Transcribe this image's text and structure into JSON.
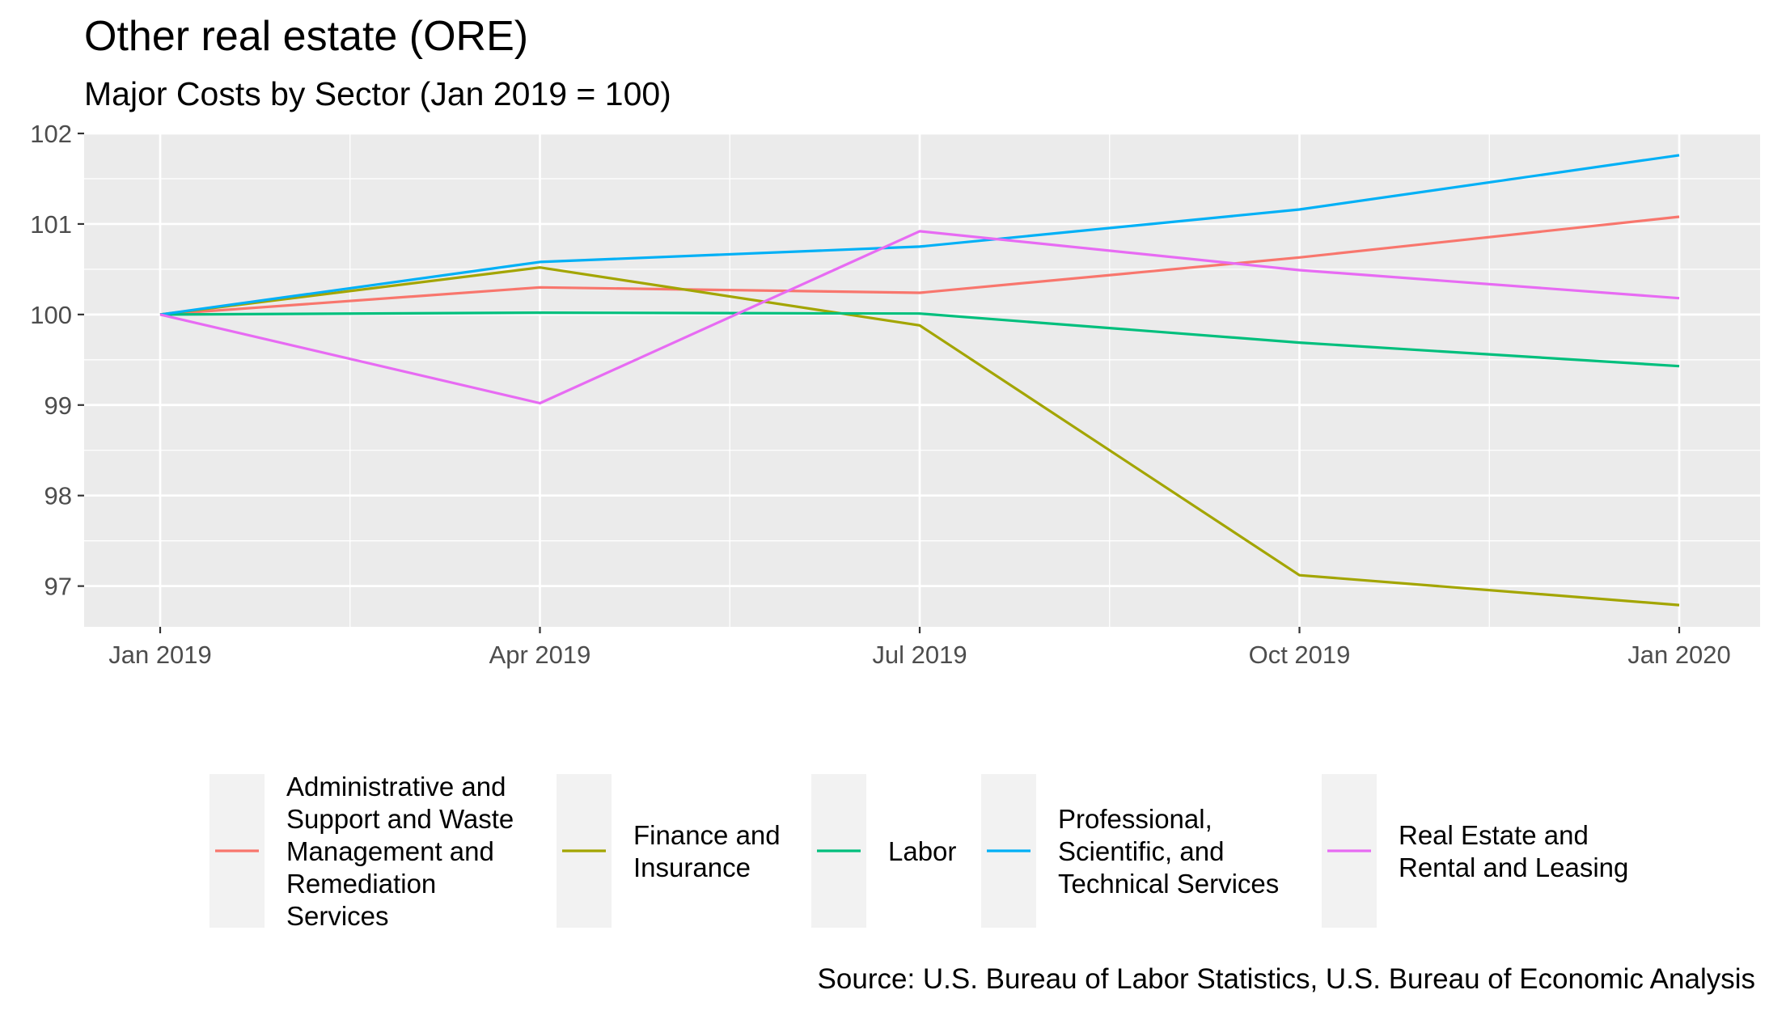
{
  "chart_data": {
    "type": "line",
    "title": "Other real estate (ORE)",
    "subtitle": "Major Costs by Sector (Jan 2019 = 100)",
    "caption": "Source: U.S. Bureau of Labor Statistics, U.S. Bureau of Economic Analysis",
    "xlabel": "",
    "ylabel": "",
    "x": [
      "2019-01",
      "2019-04",
      "2019-07",
      "2019-10",
      "2020-01"
    ],
    "x_tick_labels": [
      "Jan 2019",
      "Apr 2019",
      "Jul 2019",
      "Oct 2019",
      "Jan 2020"
    ],
    "y_ticks": [
      97,
      98,
      99,
      100,
      101,
      102
    ],
    "ylim": [
      96.55,
      102.0
    ],
    "grid": true,
    "legend_position": "bottom",
    "series": [
      {
        "name": "Administrative and Support and Waste Management and Remediation Services",
        "legend_lines": [
          "Administrative and",
          "Support and Waste",
          "Management and",
          "Remediation",
          "Services"
        ],
        "color": "#F8766D",
        "values": [
          100.0,
          100.3,
          100.24,
          100.63,
          101.08
        ]
      },
      {
        "name": "Finance and Insurance",
        "legend_lines": [
          "Finance and",
          "Insurance"
        ],
        "color": "#A3A500",
        "values": [
          100.0,
          100.52,
          99.88,
          97.12,
          96.79
        ]
      },
      {
        "name": "Labor",
        "legend_lines": [
          "Labor"
        ],
        "color": "#00BF7D",
        "values": [
          100.0,
          100.02,
          100.01,
          99.69,
          99.43
        ]
      },
      {
        "name": "Professional, Scientific, and Technical Services",
        "legend_lines": [
          "Professional,",
          "Scientific, and",
          "Technical Services"
        ],
        "color": "#00B0F6",
        "values": [
          100.0,
          100.58,
          100.75,
          101.16,
          101.76
        ]
      },
      {
        "name": "Real Estate and Rental and Leasing",
        "legend_lines": [
          "Real Estate and",
          "Rental and Leasing"
        ],
        "color": "#E76BF3",
        "values": [
          100.0,
          99.02,
          100.92,
          100.49,
          100.18
        ]
      }
    ]
  }
}
